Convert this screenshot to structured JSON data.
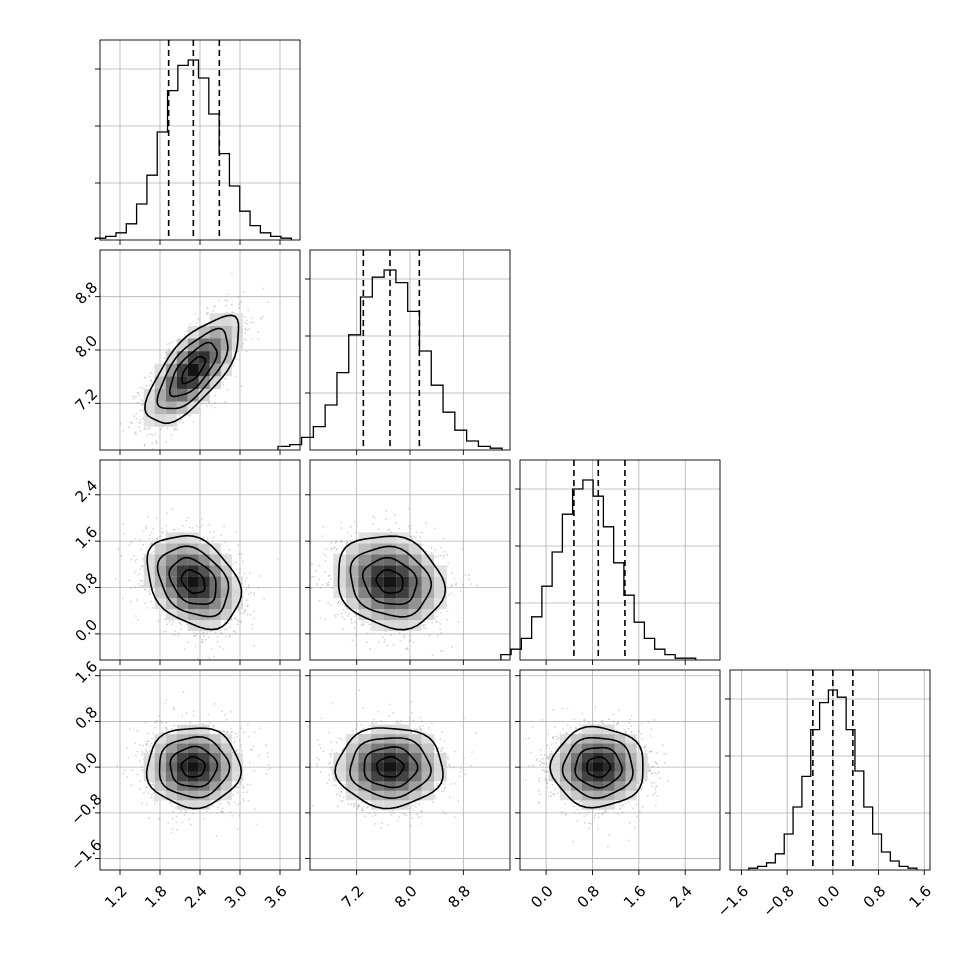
{
  "chart_data": {
    "type": "scatter",
    "kind": "corner-plot",
    "title": "",
    "grid": true,
    "legend": "none",
    "parameters": [
      {
        "ticks": [
          1.2,
          1.8,
          2.4,
          3.0,
          3.6
        ],
        "tick_labels": [
          "1.2",
          "1.8",
          "2.4",
          "3.0",
          "3.6"
        ],
        "range": [
          0.9,
          3.9
        ],
        "mean": 2.3,
        "sd": 0.35,
        "quantiles": [
          1.93,
          2.3,
          2.69
        ]
      },
      {
        "ticks": [
          7.2,
          8.0,
          8.8
        ],
        "tick_labels": [
          "7.2",
          "8.0",
          "8.8"
        ],
        "range": [
          6.5,
          9.5
        ],
        "mean": 7.7,
        "sd": 0.4,
        "quantiles": [
          7.3,
          7.7,
          8.14
        ]
      },
      {
        "ticks": [
          0.0,
          0.8,
          1.6,
          2.4
        ],
        "tick_labels": [
          "0.0",
          "0.8",
          "1.6",
          "2.4"
        ],
        "range": [
          -0.45,
          3.0
        ],
        "mean": 0.9,
        "sd": 0.4,
        "quantiles": [
          0.48,
          0.9,
          1.36
        ]
      },
      {
        "ticks": [
          -1.6,
          -0.8,
          0.0,
          0.8,
          1.6
        ],
        "tick_labels": [
          "−1.6",
          "−0.8",
          "0.0",
          "0.8",
          "1.6"
        ],
        "range": [
          -1.8,
          1.7
        ],
        "mean": 0.0,
        "sd": 0.35,
        "quantiles": [
          -0.35,
          0.0,
          0.35
        ]
      }
    ],
    "correlations": [
      {
        "pair": [
          0,
          1
        ],
        "rho": 0.7
      },
      {
        "pair": [
          0,
          2
        ],
        "rho": -0.3
      },
      {
        "pair": [
          1,
          2
        ],
        "rho": -0.15
      },
      {
        "pair": [
          0,
          3
        ],
        "rho": 0.0
      },
      {
        "pair": [
          1,
          3
        ],
        "rho": 0.0
      },
      {
        "pair": [
          2,
          3
        ],
        "rho": 0.0
      }
    ],
    "hist_rel_freq": [
      [
        0.01,
        0.02,
        0.04,
        0.09,
        0.2,
        0.36,
        0.6,
        0.83,
        0.97,
        1.0,
        0.9,
        0.7,
        0.48,
        0.3,
        0.16,
        0.08,
        0.04,
        0.02,
        0.01
      ],
      [
        0.02,
        0.03,
        0.07,
        0.13,
        0.25,
        0.43,
        0.64,
        0.85,
        0.96,
        1.0,
        0.93,
        0.77,
        0.55,
        0.36,
        0.21,
        0.11,
        0.05,
        0.02,
        0.01
      ],
      [
        0.03,
        0.06,
        0.12,
        0.24,
        0.41,
        0.6,
        0.81,
        0.95,
        1.0,
        0.91,
        0.74,
        0.54,
        0.36,
        0.21,
        0.12,
        0.06,
        0.03,
        0.01,
        0.01
      ],
      [
        0.01,
        0.02,
        0.04,
        0.09,
        0.2,
        0.35,
        0.52,
        0.78,
        0.93,
        1.0,
        0.96,
        0.78,
        0.55,
        0.35,
        0.2,
        0.1,
        0.05,
        0.02,
        0.01
      ]
    ]
  }
}
